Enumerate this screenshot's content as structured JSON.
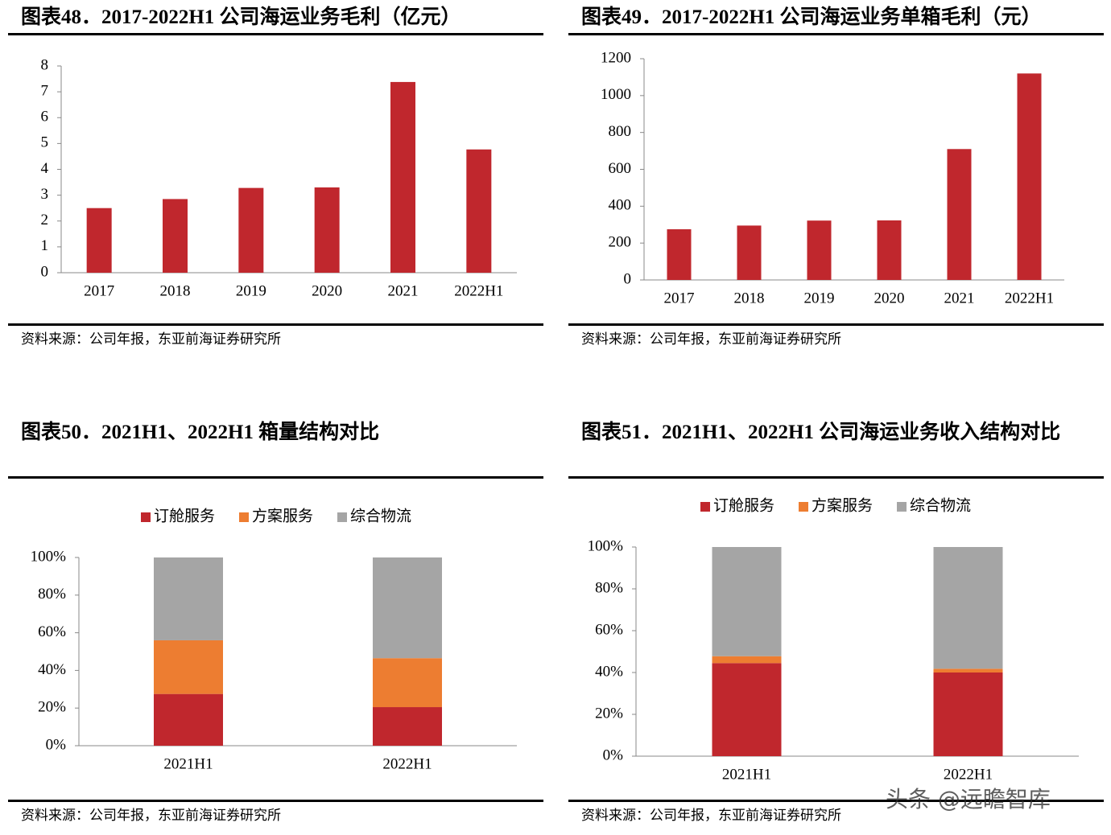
{
  "chart_data": [
    {
      "type": "bar",
      "title": "图表48．2017-2022H1 公司海运业务毛利（亿元）",
      "source": "资料来源：公司年报，东亚前海证券研究所",
      "categories": [
        "2017",
        "2018",
        "2019",
        "2020",
        "2021",
        "2022H1"
      ],
      "values": [
        2.5,
        2.85,
        3.28,
        3.3,
        7.38,
        4.77
      ],
      "color": "#c0272d",
      "ylim": [
        0,
        8
      ],
      "yticks": [
        0,
        1,
        2,
        3,
        4,
        5,
        6,
        7,
        8
      ]
    },
    {
      "type": "bar",
      "title": "图表49．2017-2022H1 公司海运业务单箱毛利（元）",
      "source": "资料来源：公司年报，东亚前海证券研究所",
      "categories": [
        "2017",
        "2018",
        "2019",
        "2020",
        "2021",
        "2022H1"
      ],
      "values": [
        275,
        295,
        322,
        323,
        710,
        1120
      ],
      "color": "#c0272d",
      "ylim": [
        0,
        1200
      ],
      "yticks": [
        0,
        200,
        400,
        600,
        800,
        1000,
        1200
      ]
    },
    {
      "type": "stacked-bar",
      "title": "图表50．2021H1、2022H1 箱量结构对比",
      "source": "资料来源：公司年报，东亚前海证券研究所",
      "categories": [
        "2021H1",
        "2022H1"
      ],
      "series": [
        {
          "name": "订舱服务",
          "color": "#c0272d",
          "values": [
            27.5,
            20.5
          ]
        },
        {
          "name": "方案服务",
          "color": "#ed7d31",
          "values": [
            28.5,
            26
          ]
        },
        {
          "name": "综合物流",
          "color": "#a5a5a5",
          "values": [
            44,
            53.5
          ]
        }
      ],
      "ylim": [
        0,
        100
      ],
      "yticks": [
        {
          "value": 0,
          "label": "0%"
        },
        {
          "value": 20,
          "label": "20%"
        },
        {
          "value": 40,
          "label": "40%"
        },
        {
          "value": 60,
          "label": "60%"
        },
        {
          "value": 80,
          "label": "80%"
        },
        {
          "value": 100,
          "label": "100%"
        }
      ],
      "legend": "top"
    },
    {
      "type": "stacked-bar",
      "title": "图表51．2021H1、2022H1 公司海运业务收入结构对比",
      "source": "资料来源：公司年报，东亚前海证券研究所",
      "categories": [
        "2021H1",
        "2022H1"
      ],
      "series": [
        {
          "name": "订舱服务",
          "color": "#c0272d",
          "values": [
            44.5,
            40
          ]
        },
        {
          "name": "方案服务",
          "color": "#ed7d31",
          "values": [
            3.3,
            1.8
          ]
        },
        {
          "name": "综合物流",
          "color": "#a5a5a5",
          "values": [
            52.2,
            58.2
          ]
        }
      ],
      "ylim": [
        0,
        100
      ],
      "yticks": [
        {
          "value": 0,
          "label": "0%"
        },
        {
          "value": 20,
          "label": "20%"
        },
        {
          "value": 40,
          "label": "40%"
        },
        {
          "value": 60,
          "label": "60%"
        },
        {
          "value": 80,
          "label": "80%"
        },
        {
          "value": 100,
          "label": "100%"
        }
      ],
      "legend": "top"
    }
  ],
  "watermark": "头条 @远瞻智库"
}
